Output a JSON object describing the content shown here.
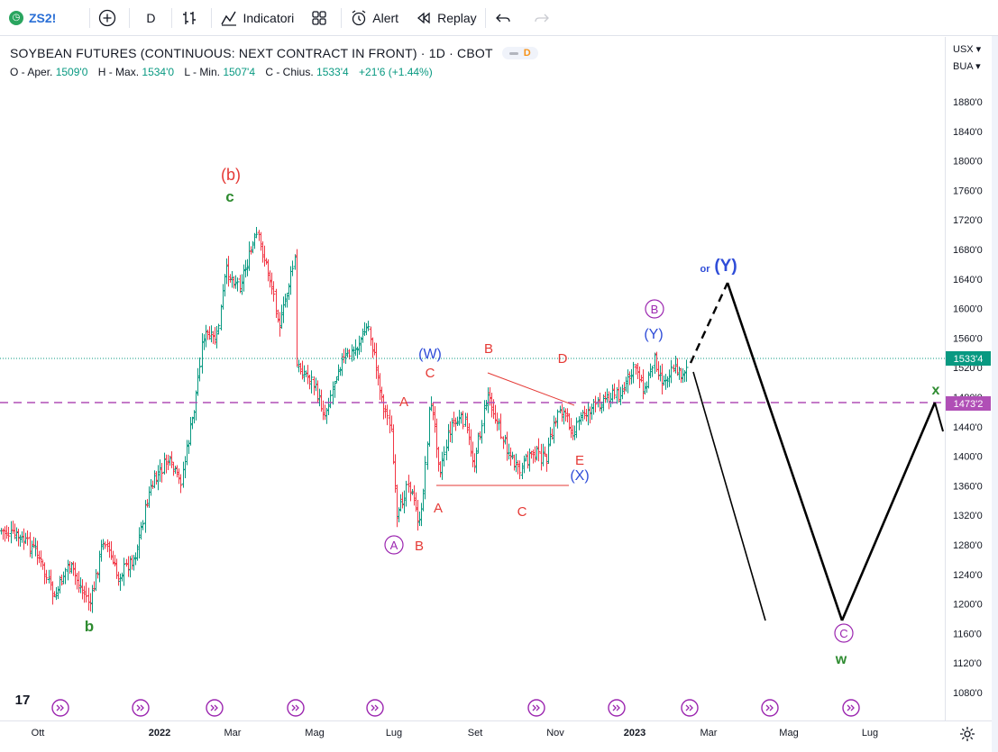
{
  "toolbar": {
    "symbol": "ZS2!",
    "interval": "D",
    "indicators_label": "Indicatori",
    "alert_label": "Alert",
    "replay_label": "Replay"
  },
  "legend": {
    "title": "SOYBEAN FUTURES (CONTINUOUS: NEXT CONTRACT IN FRONT) · 1D · CBOT",
    "badge": "D",
    "open_label": "O - Aper.",
    "open": "1509'0",
    "high_label": "H - Max.",
    "high": "1534'0",
    "low_label": "L - Min.",
    "low": "1507'4",
    "close_label": "C - Chius.",
    "close": "1533'4",
    "change": "+21'6 (+1.44%)"
  },
  "price_scale": {
    "currency": "USX",
    "unit": "BUA",
    "ticks": [
      "1880'0",
      "1840'0",
      "1800'0",
      "1760'0",
      "1720'0",
      "1680'0",
      "1640'0",
      "1600'0",
      "1560'0",
      "1520'0",
      "1480'0",
      "1440'0",
      "1400'0",
      "1360'0",
      "1320'0",
      "1280'0",
      "1240'0",
      "1200'0",
      "1160'0",
      "1120'0",
      "1080'0"
    ],
    "last_price_tag": "1533'4",
    "line_price_tag": "1473'2"
  },
  "time_axis": {
    "labels": [
      "Ott",
      "2022",
      "Mar",
      "Mag",
      "Lug",
      "Set",
      "Nov",
      "2023",
      "Mar",
      "Mag",
      "Lug"
    ]
  },
  "wave_labels": {
    "b_paren": "(b)",
    "c_top": "c",
    "b_low": "b",
    "W": "(W)",
    "C1": "C",
    "A1": "A",
    "A_circle": "A",
    "B1": "B",
    "A2": "A",
    "B2": "B",
    "C2": "C",
    "D": "D",
    "E": "E",
    "X": "(X)",
    "Y": "(Y)",
    "B_circle": "B",
    "or": "or",
    "Y2": "(Y)",
    "x": "x",
    "C_circle": "C",
    "w": "w"
  },
  "colors": {
    "up": "#089981",
    "down": "#f23645",
    "red_label": "#e53935",
    "blue_label": "#2f4dd8",
    "green_label": "#2e8b30",
    "purple": "#9c27b0",
    "dashed_line": "#b04fb6"
  }
}
